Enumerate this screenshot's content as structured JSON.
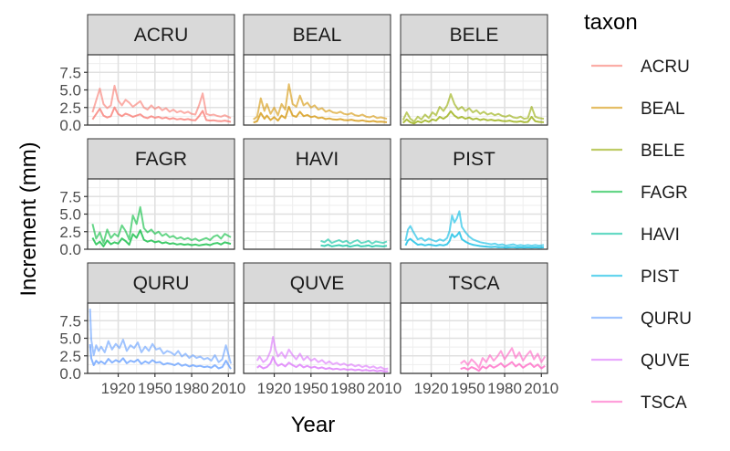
{
  "chart_data": {
    "type": "line",
    "facet_by": "taxon",
    "facets": [
      "ACRU",
      "BEAL",
      "BELE",
      "FAGR",
      "HAVI",
      "PIST",
      "QURU",
      "QUVE",
      "TSCA"
    ],
    "xlabel": "Year",
    "ylabel": "Increment (mm)",
    "xlim": [
      1895,
      2015
    ],
    "ylim": [
      0,
      10
    ],
    "x_ticks": [
      1920,
      1950,
      1980,
      2010
    ],
    "y_ticks": [
      0,
      2.5,
      5,
      7.5
    ],
    "x_tick_labels": [
      "1920",
      "1950",
      "1980",
      "2010"
    ],
    "y_tick_labels": [
      "0.0",
      "2.5",
      "5.0",
      "7.5"
    ],
    "grid": true,
    "legend": {
      "title": "taxon",
      "position": "right",
      "entries": [
        "ACRU",
        "BEAL",
        "BELE",
        "FAGR",
        "HAVI",
        "PIST",
        "QURU",
        "QUVE",
        "TSCA"
      ]
    },
    "colors": {
      "ACRU": "#F8766D",
      "BEAL": "#D39200",
      "BELE": "#93AA00",
      "FAGR": "#00BA38",
      "HAVI": "#00C19F",
      "PIST": "#00B9E3",
      "QURU": "#619CFF",
      "QUVE": "#DB72FB",
      "TSCA": "#FF61C3"
    },
    "series": [
      {
        "name": "ACRU",
        "x": [
          1899,
          1902,
          1905,
          1908,
          1911,
          1914,
          1917,
          1920,
          1923,
          1926,
          1929,
          1932,
          1935,
          1938,
          1941,
          1944,
          1947,
          1950,
          1953,
          1956,
          1959,
          1962,
          1965,
          1968,
          1971,
          1974,
          1977,
          1980,
          1983,
          1986,
          1989,
          1992,
          1995,
          1998,
          2001,
          2004,
          2007,
          2012
        ],
        "y": [
          1.8,
          3.5,
          5.2,
          3.0,
          2.4,
          2.8,
          5.6,
          3.5,
          2.8,
          3.6,
          3.2,
          2.6,
          3.0,
          3.4,
          2.5,
          2.2,
          2.8,
          2.3,
          2.6,
          2.1,
          2.4,
          1.9,
          2.2,
          1.8,
          2.0,
          1.7,
          1.9,
          1.6,
          1.5,
          2.8,
          4.5,
          1.6,
          1.4,
          1.5,
          1.3,
          1.2,
          1.4,
          1.0
        ]
      },
      {
        "name": "BEAL",
        "x": [
          1903,
          1906,
          1909,
          1912,
          1914,
          1917,
          1920,
          1923,
          1926,
          1929,
          1932,
          1935,
          1938,
          1941,
          1944,
          1947,
          1950,
          1953,
          1956,
          1959,
          1962,
          1965,
          1968,
          1971,
          1974,
          1977,
          1980,
          1983,
          1986,
          1989,
          1992,
          1995,
          1998,
          2001,
          2004,
          2007,
          2012
        ],
        "y": [
          0.8,
          1.2,
          3.8,
          2.0,
          3.0,
          1.6,
          2.5,
          1.4,
          3.0,
          2.2,
          5.8,
          3.0,
          2.6,
          4.2,
          2.8,
          3.2,
          2.5,
          2.8,
          2.2,
          2.4,
          1.9,
          2.1,
          1.8,
          1.7,
          1.9,
          1.6,
          1.5,
          1.7,
          1.4,
          1.3,
          1.5,
          1.2,
          1.1,
          1.3,
          1.0,
          1.1,
          0.9
        ]
      },
      {
        "name": "BELE",
        "x": [
          1897,
          1900,
          1903,
          1906,
          1909,
          1912,
          1915,
          1918,
          1921,
          1924,
          1927,
          1930,
          1933,
          1936,
          1939,
          1942,
          1945,
          1948,
          1951,
          1954,
          1957,
          1960,
          1963,
          1966,
          1969,
          1972,
          1975,
          1978,
          1981,
          1984,
          1987,
          1990,
          1993,
          1996,
          1999,
          2002,
          2005,
          2008,
          2012
        ],
        "y": [
          0.7,
          1.8,
          0.9,
          0.5,
          1.2,
          0.8,
          1.5,
          1.0,
          1.8,
          1.4,
          2.6,
          2.0,
          2.8,
          4.4,
          3.0,
          2.2,
          2.6,
          2.0,
          2.4,
          1.8,
          2.1,
          1.6,
          1.9,
          1.5,
          1.7,
          1.4,
          1.6,
          1.3,
          1.2,
          1.4,
          1.1,
          1.0,
          1.2,
          0.9,
          1.0,
          2.6,
          1.2,
          1.0,
          0.9
        ]
      },
      {
        "name": "FAGR",
        "x": [
          1899,
          1902,
          1905,
          1908,
          1911,
          1914,
          1917,
          1920,
          1923,
          1926,
          1929,
          1932,
          1935,
          1938,
          1941,
          1944,
          1947,
          1950,
          1953,
          1956,
          1959,
          1962,
          1965,
          1968,
          1971,
          1974,
          1977,
          1980,
          1983,
          1986,
          1989,
          1992,
          1995,
          1998,
          2001,
          2004,
          2007,
          2012
        ],
        "y": [
          3.6,
          1.5,
          2.4,
          0.9,
          2.8,
          1.6,
          2.2,
          1.8,
          3.4,
          2.6,
          1.4,
          4.8,
          3.6,
          6.0,
          3.0,
          2.4,
          2.8,
          2.2,
          2.5,
          1.9,
          2.2,
          1.7,
          1.9,
          1.5,
          1.7,
          1.4,
          1.6,
          1.3,
          1.5,
          1.2,
          1.4,
          1.6,
          1.3,
          1.8,
          2.0,
          1.5,
          2.2,
          1.7
        ]
      },
      {
        "name": "HAVI",
        "x": [
          1958,
          1961,
          1964,
          1967,
          1970,
          1973,
          1976,
          1979,
          1982,
          1985,
          1988,
          1991,
          1994,
          1997,
          2000,
          2003,
          2006,
          2009,
          2012
        ],
        "y": [
          1.2,
          1.0,
          1.4,
          0.9,
          1.1,
          1.3,
          1.0,
          1.2,
          0.8,
          1.1,
          1.3,
          0.9,
          1.0,
          1.2,
          0.8,
          1.1,
          1.0,
          0.9,
          1.1
        ]
      },
      {
        "name": "PIST",
        "x": [
          1899,
          1901,
          1903,
          1905,
          1907,
          1909,
          1912,
          1915,
          1918,
          1921,
          1924,
          1927,
          1930,
          1933,
          1935,
          1937,
          1939,
          1941,
          1943,
          1945,
          1948,
          1951,
          1954,
          1957,
          1960,
          1963,
          1966,
          1969,
          1972,
          1975,
          1978,
          1981,
          1984,
          1987,
          1990,
          1993,
          1996,
          1999,
          2002,
          2005,
          2008,
          2012
        ],
        "y": [
          1.2,
          2.8,
          3.3,
          2.6,
          2.0,
          1.4,
          1.6,
          1.2,
          1.5,
          1.3,
          1.1,
          1.4,
          1.2,
          1.6,
          2.6,
          4.8,
          3.8,
          4.4,
          5.4,
          3.2,
          2.4,
          1.8,
          1.4,
          1.2,
          1.0,
          0.9,
          0.8,
          0.7,
          0.8,
          0.6,
          0.7,
          0.5,
          0.6,
          0.7,
          0.5,
          0.6,
          0.5,
          0.6,
          0.5,
          0.6,
          0.5,
          0.6
        ]
      },
      {
        "name": "QURU",
        "x": [
          1897,
          1898,
          1900,
          1902,
          1904,
          1906,
          1909,
          1912,
          1915,
          1918,
          1921,
          1924,
          1927,
          1930,
          1933,
          1936,
          1939,
          1942,
          1945,
          1948,
          1951,
          1954,
          1957,
          1960,
          1963,
          1966,
          1969,
          1972,
          1975,
          1978,
          1981,
          1984,
          1987,
          1990,
          1993,
          1996,
          1999,
          2002,
          2005,
          2008,
          2012
        ],
        "y": [
          9.2,
          4.8,
          2.6,
          4.0,
          3.2,
          3.8,
          3.0,
          4.6,
          3.4,
          4.2,
          3.6,
          4.8,
          3.2,
          4.0,
          3.6,
          4.4,
          3.0,
          3.8,
          3.2,
          4.2,
          3.4,
          3.6,
          2.8,
          3.2,
          3.0,
          2.6,
          3.2,
          2.4,
          2.8,
          2.2,
          2.6,
          2.2,
          2.4,
          2.0,
          2.2,
          1.8,
          2.6,
          1.6,
          2.0,
          4.0,
          1.4
        ]
      },
      {
        "name": "QUVE",
        "x": [
          1906,
          1908,
          1911,
          1914,
          1917,
          1919,
          1921,
          1923,
          1926,
          1929,
          1932,
          1935,
          1938,
          1941,
          1944,
          1947,
          1950,
          1953,
          1956,
          1959,
          1962,
          1965,
          1968,
          1971,
          1974,
          1977,
          1980,
          1983,
          1986,
          1989,
          1992,
          1995,
          1998,
          2001,
          2004,
          2007,
          2010,
          2013
        ],
        "y": [
          1.8,
          2.4,
          1.6,
          2.0,
          3.2,
          5.2,
          3.4,
          2.4,
          3.0,
          2.2,
          3.4,
          2.6,
          2.0,
          2.8,
          1.9,
          2.4,
          1.8,
          2.1,
          1.6,
          1.9,
          1.4,
          1.7,
          1.3,
          1.5,
          1.2,
          1.4,
          1.1,
          1.3,
          1.0,
          1.2,
          0.9,
          1.1,
          0.8,
          1.0,
          0.7,
          0.9,
          0.6,
          0.7
        ]
      },
      {
        "name": "TSCA",
        "x": [
          1944,
          1947,
          1950,
          1953,
          1956,
          1959,
          1962,
          1965,
          1968,
          1971,
          1974,
          1977,
          1980,
          1983,
          1986,
          1989,
          1992,
          1995,
          1998,
          2001,
          2004,
          2007,
          2010,
          2013
        ],
        "y": [
          1.4,
          1.8,
          1.2,
          2.0,
          1.5,
          0.8,
          2.2,
          1.6,
          2.6,
          1.8,
          2.4,
          3.2,
          2.0,
          2.8,
          3.6,
          2.2,
          3.0,
          1.8,
          2.6,
          3.2,
          2.0,
          2.8,
          1.6,
          2.4
        ]
      }
    ]
  }
}
